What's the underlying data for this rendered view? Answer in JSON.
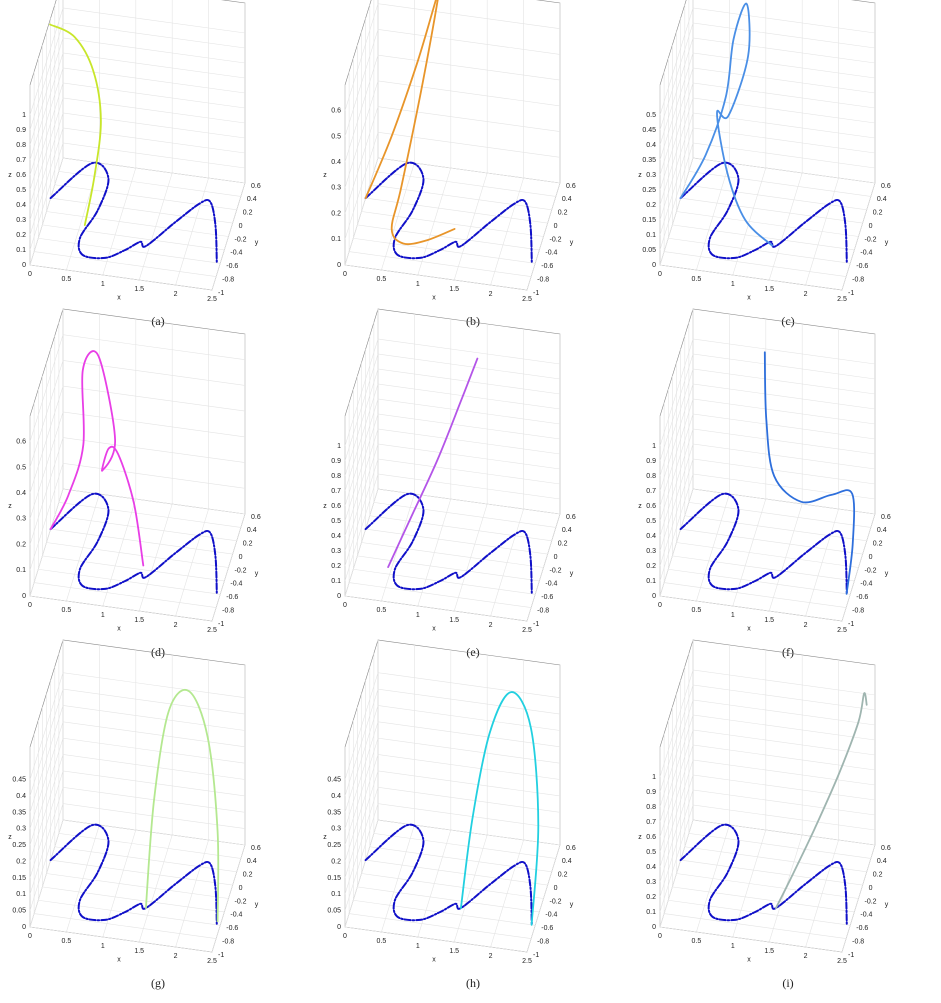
{
  "chart_data": [
    {
      "type": "line3d",
      "caption": "(a)",
      "xlabel": "x",
      "ylabel": "y",
      "zlabel": "z",
      "xlim": [
        0,
        2.5
      ],
      "ylim": [
        -1,
        0.6
      ],
      "zlim": [
        0,
        1.2
      ],
      "xticks": [
        0,
        0.5,
        1,
        1.5,
        2,
        2.5
      ],
      "yticks": [
        -1,
        -0.8,
        -0.6,
        -0.4,
        -0.2,
        0,
        0.2,
        0.4,
        0.6
      ],
      "zticks": [
        0,
        0.1,
        0.2,
        0.3,
        0.4,
        0.5,
        0.6,
        0.7,
        0.8,
        0.9,
        1
      ],
      "series": [
        {
          "color": "#1010c8",
          "style": "dashed",
          "x": [
            0,
            0.4,
            0.68,
            0.67,
            0.55,
            0.65,
            0.96,
            1.19,
            1.36,
            1.45,
            1.74,
            1.99,
            2.12,
            2.28,
            2.45
          ],
          "y": [
            0,
            0.58,
            0.4,
            -0.08,
            -0.51,
            -0.75,
            -0.75,
            -0.6,
            -0.45,
            -0.5,
            -0.1,
            0.22,
            0.26,
            -0.06,
            -0.59
          ],
          "z": [
            0,
            0,
            0,
            0,
            0,
            0,
            0,
            0,
            0,
            0,
            0,
            0,
            0,
            0,
            0
          ]
        },
        {
          "color": "#c8e62a",
          "style": "solid",
          "x": [
            0.05,
            0.3,
            0.5,
            0.62,
            0.6,
            0.56
          ],
          "y": [
            -0.2,
            0.1,
            0.3,
            0.25,
            0,
            -0.32
          ],
          "z": [
            1.25,
            1.05,
            0.75,
            0.45,
            0.18,
            0
          ]
        }
      ]
    },
    {
      "type": "line3d",
      "caption": "(b)",
      "xlabel": "x",
      "ylabel": "y",
      "zlabel": "z",
      "xlim": [
        0,
        2.5
      ],
      "ylim": [
        -1,
        0.6
      ],
      "zlim": [
        0,
        0.7
      ],
      "xticks": [
        0,
        0.5,
        1,
        1.5,
        2,
        2.5
      ],
      "yticks": [
        -1,
        -0.8,
        -0.6,
        -0.4,
        -0.2,
        0,
        0.2,
        0.4,
        0.6
      ],
      "zticks": [
        0,
        0.1,
        0.2,
        0.3,
        0.4,
        0.5,
        0.6
      ],
      "series": [
        {
          "color": "#1010c8",
          "style": "dashed",
          "x": [
            0,
            0.4,
            0.68,
            0.67,
            0.55,
            0.65,
            0.96,
            1.19,
            1.36,
            1.45,
            1.74,
            1.99,
            2.12,
            2.28,
            2.45
          ],
          "y": [
            0,
            0.58,
            0.4,
            -0.08,
            -0.51,
            -0.75,
            -0.75,
            -0.6,
            -0.45,
            -0.5,
            -0.1,
            0.22,
            0.26,
            -0.06,
            -0.59
          ],
          "z": [
            0,
            0,
            0,
            0,
            0,
            0,
            0,
            0,
            0,
            0,
            0,
            0,
            0,
            0,
            0
          ]
        },
        {
          "color": "#e8952a",
          "style": "solid",
          "x": [
            0,
            0.3,
            0.6,
            0.8,
            0.85,
            0.7,
            0.55,
            0.5,
            0.7,
            1.0,
            1.35
          ],
          "y": [
            0,
            0.2,
            0.4,
            0.55,
            0.6,
            0.3,
            -0.2,
            -0.5,
            -0.65,
            -0.6,
            -0.45
          ],
          "z": [
            0,
            0.2,
            0.45,
            0.65,
            0.7,
            0.4,
            0.12,
            0.03,
            0.02,
            0.03,
            0.05
          ]
        }
      ]
    },
    {
      "type": "line3d",
      "caption": "(c)",
      "xlabel": "x",
      "ylabel": "y",
      "zlabel": "z",
      "xlim": [
        0,
        2.5
      ],
      "ylim": [
        -1,
        0.6
      ],
      "zlim": [
        0,
        0.6
      ],
      "xticks": [
        0,
        0.5,
        1,
        1.5,
        2,
        2.5
      ],
      "yticks": [
        -1,
        -0.8,
        -0.6,
        -0.4,
        -0.2,
        0,
        0.2,
        0.4,
        0.6
      ],
      "zticks": [
        0,
        0.05,
        0.1,
        0.15,
        0.2,
        0.25,
        0.3,
        0.35,
        0.4,
        0.45,
        0.5
      ],
      "series": [
        {
          "color": "#1010c8",
          "style": "dashed",
          "x": [
            0,
            0.4,
            0.68,
            0.67,
            0.55,
            0.65,
            0.96,
            1.19,
            1.36,
            1.45,
            1.74,
            1.99,
            2.12,
            2.28,
            2.45
          ],
          "y": [
            0,
            0.58,
            0.4,
            -0.08,
            -0.51,
            -0.75,
            -0.75,
            -0.6,
            -0.45,
            -0.5,
            -0.1,
            0.22,
            0.26,
            -0.06,
            -0.59
          ],
          "z": [
            0,
            0,
            0,
            0,
            0,
            0,
            0,
            0,
            0,
            0,
            0,
            0,
            0,
            0,
            0
          ]
        },
        {
          "color": "#4a8fe6",
          "style": "solid",
          "x": [
            0,
            0.3,
            0.55,
            0.6,
            0.75,
            0.8,
            0.6,
            0.5,
            0.7,
            1.0,
            1.4
          ],
          "y": [
            0,
            0.15,
            0.25,
            0.45,
            0.55,
            0.45,
            0.2,
            0,
            -0.2,
            -0.4,
            -0.5
          ],
          "z": [
            0,
            0.12,
            0.3,
            0.45,
            0.55,
            0.4,
            0.25,
            0.3,
            0.15,
            0.05,
            0
          ]
        }
      ]
    },
    {
      "type": "line3d",
      "caption": "(d)",
      "xlabel": "x",
      "ylabel": "y",
      "zlabel": "z",
      "xlim": [
        0,
        2.5
      ],
      "ylim": [
        -1,
        0.6
      ],
      "zlim": [
        0,
        0.7
      ],
      "xticks": [
        0,
        0.5,
        1,
        1.5,
        2,
        2.5
      ],
      "yticks": [
        -1,
        -0.8,
        -0.6,
        -0.4,
        -0.2,
        0,
        0.2,
        0.4,
        0.6
      ],
      "zticks": [
        0,
        0.1,
        0.2,
        0.3,
        0.4,
        0.5,
        0.6
      ],
      "series": [
        {
          "color": "#1010c8",
          "style": "dashed",
          "x": [
            0,
            0.4,
            0.68,
            0.67,
            0.55,
            0.65,
            0.96,
            1.19,
            1.36,
            1.45,
            1.74,
            1.99,
            2.12,
            2.28,
            2.45
          ],
          "y": [
            0,
            0.58,
            0.4,
            -0.08,
            -0.51,
            -0.75,
            -0.75,
            -0.6,
            -0.45,
            -0.5,
            -0.1,
            0.22,
            0.26,
            -0.06,
            -0.59
          ],
          "z": [
            0,
            0,
            0,
            0,
            0,
            0,
            0,
            0,
            0,
            0,
            0,
            0,
            0,
            0,
            0
          ]
        },
        {
          "color": "#e83ee6",
          "style": "solid",
          "x": [
            0,
            0.2,
            0.35,
            0.3,
            0.5,
            0.8,
            0.65,
            0.7,
            0.9,
            1.2,
            1.4
          ],
          "y": [
            0,
            0.15,
            0.35,
            0.5,
            0.55,
            0.3,
            0.2,
            0.35,
            0.1,
            -0.2,
            -0.45
          ],
          "z": [
            0,
            0.1,
            0.25,
            0.5,
            0.55,
            0.3,
            0.2,
            0.25,
            0.3,
            0.2,
            0.03
          ]
        }
      ]
    },
    {
      "type": "line3d",
      "caption": "(e)",
      "xlabel": "x",
      "ylabel": "y",
      "zlabel": "z",
      "xlim": [
        0,
        2.5
      ],
      "ylim": [
        -1,
        0.6
      ],
      "zlim": [
        0,
        1.2
      ],
      "xticks": [
        0,
        0.5,
        1,
        1.5,
        2,
        2.5
      ],
      "yticks": [
        -1,
        -0.8,
        -0.6,
        -0.4,
        -0.2,
        0,
        0.2,
        0.4,
        0.6
      ],
      "zticks": [
        0,
        0.1,
        0.2,
        0.3,
        0.4,
        0.5,
        0.6,
        0.7,
        0.8,
        0.9,
        1
      ],
      "series": [
        {
          "color": "#1010c8",
          "style": "dashed",
          "x": [
            0,
            0.4,
            0.68,
            0.67,
            0.55,
            0.65,
            0.96,
            1.19,
            1.36,
            1.45,
            1.74,
            1.99,
            2.12,
            2.28,
            2.45
          ],
          "y": [
            0,
            0.58,
            0.4,
            -0.08,
            -0.51,
            -0.75,
            -0.75,
            -0.6,
            -0.45,
            -0.5,
            -0.1,
            0.22,
            0.26,
            -0.06,
            -0.59
          ],
          "z": [
            0,
            0,
            0,
            0,
            0,
            0,
            0,
            0,
            0,
            0,
            0,
            0,
            0,
            0,
            0
          ]
        },
        {
          "color": "#b455e8",
          "style": "solid",
          "x": [
            0.45,
            0.7,
            1.0,
            1.25,
            1.45
          ],
          "y": [
            -0.5,
            -0.3,
            -0.05,
            0.15,
            0.3
          ],
          "z": [
            0,
            0.25,
            0.55,
            0.85,
            1.1
          ]
        }
      ]
    },
    {
      "type": "line3d",
      "caption": "(f)",
      "xlabel": "x",
      "ylabel": "y",
      "zlabel": "z",
      "xlim": [
        0,
        2.5
      ],
      "ylim": [
        -1,
        0.6
      ],
      "zlim": [
        0,
        1.2
      ],
      "xticks": [
        0,
        0.5,
        1,
        1.5,
        2,
        2.5
      ],
      "yticks": [
        -1,
        -0.8,
        -0.6,
        -0.4,
        -0.2,
        0,
        0.2,
        0.4,
        0.6
      ],
      "zticks": [
        0,
        0.1,
        0.2,
        0.3,
        0.4,
        0.5,
        0.6,
        0.7,
        0.8,
        0.9,
        1
      ],
      "series": [
        {
          "color": "#1010c8",
          "style": "dashed",
          "x": [
            0,
            0.4,
            0.68,
            0.67,
            0.55,
            0.65,
            0.96,
            1.19,
            1.36,
            1.45,
            1.74,
            1.99,
            2.12,
            2.28,
            2.45
          ],
          "y": [
            0,
            0.58,
            0.4,
            -0.08,
            -0.51,
            -0.75,
            -0.75,
            -0.6,
            -0.45,
            -0.5,
            -0.1,
            0.22,
            0.26,
            -0.06,
            -0.59
          ],
          "z": [
            0,
            0,
            0,
            0,
            0,
            0,
            0,
            0,
            0,
            0,
            0,
            0,
            0,
            0,
            0
          ]
        },
        {
          "color": "#2e6fdc",
          "style": "solid",
          "x": [
            2.45,
            2.42,
            2.3,
            2.0,
            1.6,
            1.2,
            1.05,
            1.0
          ],
          "y": [
            -0.6,
            -0.2,
            0.2,
            0.25,
            0.2,
            0.3,
            0.45,
            0.55
          ],
          "z": [
            0,
            0.15,
            0.3,
            0.25,
            0.2,
            0.3,
            0.6,
            1.0
          ]
        }
      ]
    },
    {
      "type": "line3d",
      "caption": "(g)",
      "xlabel": "x",
      "ylabel": "y",
      "zlabel": "z",
      "xlim": [
        0,
        2.5
      ],
      "ylim": [
        -1,
        0.6
      ],
      "zlim": [
        0,
        0.55
      ],
      "xticks": [
        0,
        0.5,
        1,
        1.5,
        2,
        2.5
      ],
      "yticks": [
        -1,
        -0.8,
        -0.6,
        -0.4,
        -0.2,
        0,
        0.2,
        0.4,
        0.6
      ],
      "zticks": [
        0,
        0.05,
        0.1,
        0.15,
        0.2,
        0.25,
        0.3,
        0.35,
        0.4,
        0.45
      ],
      "series": [
        {
          "color": "#1010c8",
          "style": "dashed",
          "x": [
            0,
            0.4,
            0.68,
            0.67,
            0.55,
            0.65,
            0.96,
            1.19,
            1.36,
            1.45,
            1.74,
            1.99,
            2.12,
            2.28,
            2.45
          ],
          "y": [
            0,
            0.58,
            0.4,
            -0.08,
            -0.51,
            -0.75,
            -0.75,
            -0.6,
            -0.45,
            -0.5,
            -0.1,
            0.22,
            0.26,
            -0.06,
            -0.59
          ],
          "z": [
            0,
            0,
            0,
            0,
            0,
            0,
            0,
            0,
            0,
            0,
            0,
            0,
            0,
            0,
            0
          ]
        },
        {
          "color": "#b4e890",
          "style": "solid",
          "x": [
            1.45,
            1.45,
            1.55,
            1.8,
            2.1,
            2.35,
            2.45
          ],
          "y": [
            -0.5,
            -0.1,
            0.25,
            0.35,
            0.2,
            -0.2,
            -0.55
          ],
          "z": [
            0,
            0.25,
            0.45,
            0.5,
            0.4,
            0.2,
            0
          ]
        }
      ]
    },
    {
      "type": "line3d",
      "caption": "(h)",
      "xlabel": "x",
      "ylabel": "y",
      "zlabel": "z",
      "xlim": [
        0,
        2.5
      ],
      "ylim": [
        -1,
        0.6
      ],
      "zlim": [
        0,
        0.55
      ],
      "xticks": [
        0,
        0.5,
        1,
        1.5,
        2,
        2.5
      ],
      "yticks": [
        -1,
        -0.8,
        -0.6,
        -0.4,
        -0.2,
        0,
        0.2,
        0.4,
        0.6
      ],
      "zticks": [
        0,
        0.05,
        0.1,
        0.15,
        0.2,
        0.25,
        0.3,
        0.35,
        0.4,
        0.45
      ],
      "series": [
        {
          "color": "#1010c8",
          "style": "dashed",
          "x": [
            0,
            0.4,
            0.68,
            0.67,
            0.55,
            0.65,
            0.96,
            1.19,
            1.36,
            1.45,
            1.74,
            1.99,
            2.12,
            2.28,
            2.45
          ],
          "y": [
            0,
            0.58,
            0.4,
            -0.08,
            -0.51,
            -0.75,
            -0.75,
            -0.6,
            -0.45,
            -0.5,
            -0.1,
            0.22,
            0.26,
            -0.06,
            -0.59
          ],
          "z": [
            0,
            0,
            0,
            0,
            0,
            0,
            0,
            0,
            0,
            0,
            0,
            0,
            0,
            0,
            0
          ]
        },
        {
          "color": "#22d0e0",
          "style": "solid",
          "x": [
            1.45,
            1.5,
            1.65,
            1.9,
            2.2,
            2.4,
            2.45
          ],
          "y": [
            -0.5,
            -0.1,
            0.2,
            0.35,
            0.25,
            -0.1,
            -0.6
          ],
          "z": [
            0,
            0.2,
            0.4,
            0.5,
            0.42,
            0.2,
            0
          ]
        }
      ]
    },
    {
      "type": "line3d",
      "caption": "(i)",
      "xlabel": "x",
      "ylabel": "y",
      "zlabel": "z",
      "xlim": [
        0,
        2.5
      ],
      "ylim": [
        -1,
        0.6
      ],
      "zlim": [
        0,
        1.2
      ],
      "xticks": [
        0,
        0.5,
        1,
        1.5,
        2,
        2.5
      ],
      "yticks": [
        -1,
        -0.8,
        -0.6,
        -0.4,
        -0.2,
        0,
        0.2,
        0.4,
        0.6
      ],
      "zticks": [
        0,
        0.1,
        0.2,
        0.3,
        0.4,
        0.5,
        0.6,
        0.7,
        0.8,
        0.9,
        1
      ],
      "series": [
        {
          "color": "#1010c8",
          "style": "dashed",
          "x": [
            0,
            0.4,
            0.68,
            0.67,
            0.55,
            0.65,
            0.96,
            1.19,
            1.36,
            1.45,
            1.74,
            1.99,
            2.12,
            2.28,
            2.45
          ],
          "y": [
            0,
            0.58,
            0.4,
            -0.08,
            -0.51,
            -0.75,
            -0.75,
            -0.6,
            -0.45,
            -0.5,
            -0.1,
            0.22,
            0.26,
            -0.06,
            -0.59
          ],
          "z": [
            0,
            0,
            0,
            0,
            0,
            0,
            0,
            0,
            0,
            0,
            0,
            0,
            0,
            0,
            0
          ]
        },
        {
          "color": "#9fb5b0",
          "style": "solid",
          "x": [
            1.45,
            1.6,
            1.85,
            2.1,
            2.3,
            2.35,
            2.4
          ],
          "y": [
            -0.5,
            -0.3,
            -0.05,
            0.25,
            0.5,
            0.6,
            0.55
          ],
          "z": [
            0,
            0.12,
            0.35,
            0.6,
            0.85,
            1.0,
            0.95
          ]
        }
      ]
    }
  ]
}
